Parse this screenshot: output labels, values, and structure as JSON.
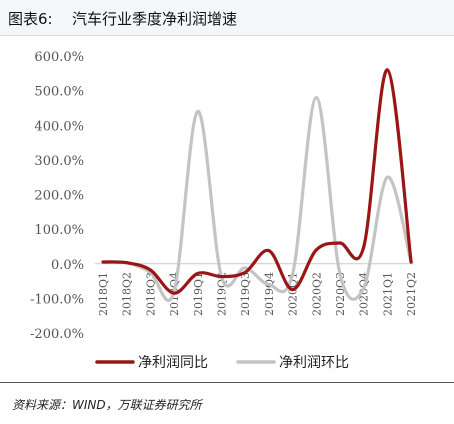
{
  "header": {
    "figure_label": "图表6:",
    "title": "汽车行业季度净利润增速"
  },
  "footer": {
    "source": "资料来源：WIND，万联证券研究所"
  },
  "colors": {
    "yoy": "#9a1616",
    "qoq": "#c4c4c4",
    "axis": "#cccccc"
  },
  "chart_data": {
    "type": "line",
    "title": "汽车行业季度净利润增速",
    "categories": [
      "2018Q1",
      "2018Q2",
      "2018Q3",
      "2018Q4",
      "2019Q1",
      "2019Q2",
      "2019Q3",
      "2019Q4",
      "2020Q1",
      "2020Q2",
      "2020Q3",
      "2020Q4",
      "2021Q1",
      "2021Q2"
    ],
    "y_ticks": [
      "600.0%",
      "500.0%",
      "400.0%",
      "300.0%",
      "200.0%",
      "100.0%",
      "0.0%",
      "-100.0%",
      "-200.0%"
    ],
    "ylim": [
      -200,
      600
    ],
    "grid": false,
    "legend_position": "bottom",
    "series": [
      {
        "name": "净利润同比",
        "color": "#9a1616",
        "values": [
          5,
          3,
          -18,
          -85,
          -28,
          -37,
          -25,
          38,
          -75,
          40,
          60,
          48,
          560,
          5
        ]
      },
      {
        "name": "净利润环比",
        "color": "#c4c4c4",
        "values": [
          5,
          3,
          -25,
          -80,
          440,
          -37,
          -12,
          -60,
          -30,
          480,
          -30,
          -70,
          250,
          5
        ]
      }
    ]
  }
}
